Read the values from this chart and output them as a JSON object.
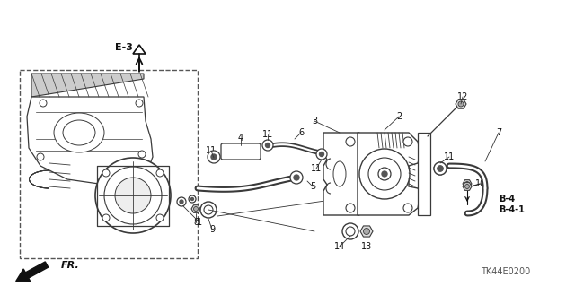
{
  "bg_color": "#ffffff",
  "line_color": "#3a3a3a",
  "dark_color": "#111111",
  "fig_width": 6.4,
  "fig_height": 3.19,
  "dpi": 100,
  "watermark": "TK44E0200",
  "section_label": "E-3",
  "direction_label": "FR."
}
